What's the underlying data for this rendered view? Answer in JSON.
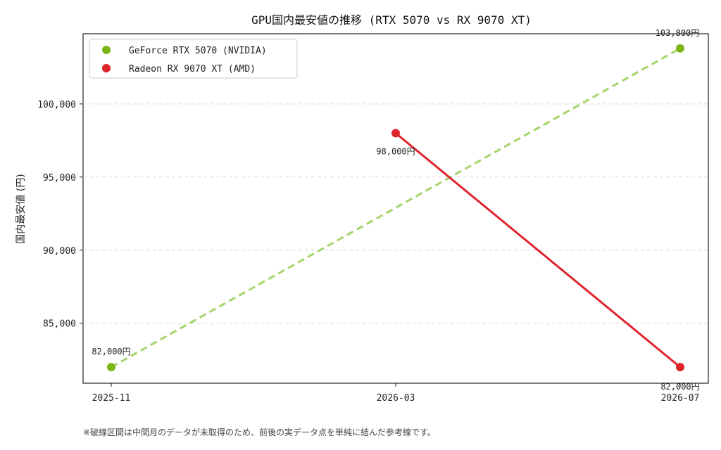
{
  "chart_data": {
    "type": "line",
    "title": "GPU国内最安値の推移 (RTX 5070 vs RX 9070 XT)",
    "xlabel": "",
    "ylabel": "国内最安値 (円)",
    "categories": [
      "2025-11",
      "2026-03",
      "2026-07"
    ],
    "x_tick_labels": [
      "2025-11",
      "2026-03",
      "2026-07"
    ],
    "y_tick_labels": [
      "85,000",
      "90,000",
      "95,000",
      "100,000"
    ],
    "y_ticks": [
      85000,
      90000,
      95000,
      100000
    ],
    "ylim": [
      80900,
      104800
    ],
    "grid": "y-only dashed",
    "legend_position": "top-left",
    "series": [
      {
        "name": "GeForce RTX 5070 (NVIDIA)",
        "color": "#7cb518",
        "line_color": "#a5d46a",
        "line_style": "dashed",
        "points": [
          {
            "x": "2025-11",
            "y": 82000,
            "label": "82,000円"
          },
          {
            "x": "2026-07",
            "y": 103800,
            "label": "103,800円"
          }
        ]
      },
      {
        "name": "Radeon RX 9070 XT (AMD)",
        "color": "#e0242c",
        "line_color": "#e0242c",
        "line_style": "solid",
        "points": [
          {
            "x": "2026-03",
            "y": 98000,
            "label": "98,000円"
          },
          {
            "x": "2026-07",
            "y": 82000,
            "label": "82,000円"
          }
        ]
      }
    ]
  },
  "footnote": "※破線区間は中間月のデータが未取得のため、前後の実データ点を単純に結んだ参考線です。"
}
